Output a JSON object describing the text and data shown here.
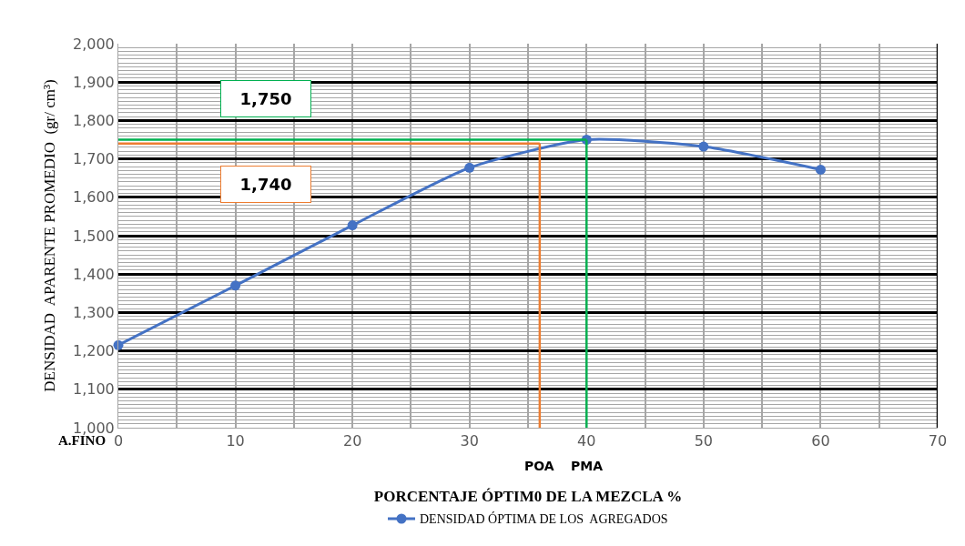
{
  "chart_data": {
    "type": "line",
    "xlabel": "PORCENTAJE ÓPTIM0 DE LA MEZCLA %",
    "ylabel": "DENSIDAD  APARENTE PROMEDIO  (gr/ cm³)",
    "x": [
      0,
      10,
      20,
      30,
      40,
      50,
      60
    ],
    "series": [
      {
        "name": "DENSIDAD ÓPTIMA DE LOS  AGREGADOS",
        "color": "#4472c4",
        "values": [
          1215,
          1370,
          1527,
          1677,
          1750,
          1732,
          1672
        ]
      }
    ],
    "xlim": [
      0,
      70
    ],
    "xticks": [
      0,
      10,
      20,
      30,
      40,
      50,
      60,
      70
    ],
    "ylim": [
      1000,
      2000
    ],
    "yticks": [
      {
        "value": 1000,
        "label": "1,000"
      },
      {
        "value": 1100,
        "label": "1,100"
      },
      {
        "value": 1200,
        "label": "1,200"
      },
      {
        "value": 1300,
        "label": "1,300"
      },
      {
        "value": 1400,
        "label": "1,400"
      },
      {
        "value": 1500,
        "label": "1,500"
      },
      {
        "value": 1600,
        "label": "1,600"
      },
      {
        "value": 1700,
        "label": "1,700"
      },
      {
        "value": 1800,
        "label": "1,800"
      },
      {
        "value": 1900,
        "label": "1,900"
      },
      {
        "value": 2000,
        "label": "2,000"
      }
    ],
    "ref_lines": [
      {
        "axis": "y",
        "value": 1750,
        "label": "1,750",
        "color": "#00b050"
      },
      {
        "axis": "y",
        "value": 1740,
        "label": "1,740",
        "color": "#ed7d31"
      },
      {
        "axis": "x",
        "value": 36,
        "label": "POA",
        "color": "#ed7d31"
      },
      {
        "axis": "x",
        "value": 40,
        "label": "PMA",
        "color": "#00b050"
      }
    ],
    "annotations": [
      "A.FINO"
    ],
    "grid": true,
    "legend": "bottom",
    "marker": "circle",
    "line_style": "solid"
  }
}
